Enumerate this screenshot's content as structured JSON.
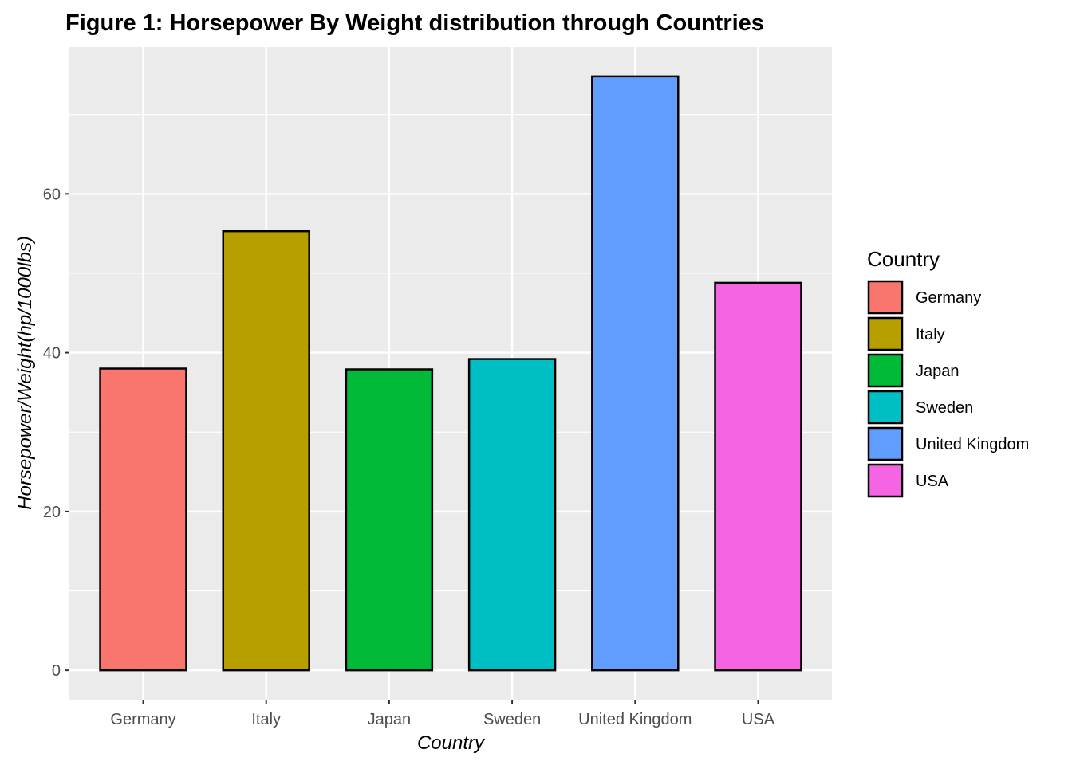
{
  "chart_data": {
    "type": "bar",
    "title": "Figure 1: Horsepower By Weight distribution through Countries",
    "xlabel": "Country",
    "ylabel": "Horsepower/Weight(hp/1000lbs)",
    "categories": [
      "Germany",
      "Italy",
      "Japan",
      "Sweden",
      "United Kingdom",
      "USA"
    ],
    "values": [
      38.0,
      55.3,
      37.9,
      39.2,
      74.8,
      48.8
    ],
    "colors": [
      "#F8766D",
      "#B79F00",
      "#00BA38",
      "#00BFC4",
      "#619CFF",
      "#F564E3"
    ],
    "ylim": [
      -3.7,
      78.5
    ],
    "yticks": [
      0,
      20,
      40,
      60
    ],
    "ytick_labels": [
      "0",
      "20",
      "40",
      "60"
    ],
    "grid": true,
    "panel_background": "#EBEBEB",
    "grid_color": "#FFFFFF",
    "bar_outline": "#000000",
    "legend": {
      "title": "Country",
      "position": "right",
      "entries": [
        "Germany",
        "Italy",
        "Japan",
        "Sweden",
        "United Kingdom",
        "USA"
      ]
    }
  }
}
